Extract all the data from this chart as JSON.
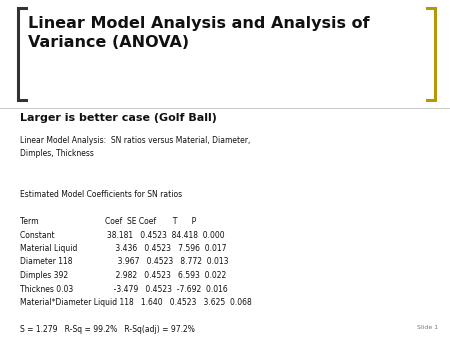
{
  "bg_color": "#e8e8d8",
  "title_bg_color": "#ffffff",
  "body_bg_color": "#ffffff",
  "title_text": "Linear Model Analysis and Analysis of\nVariance (ANOVA)",
  "subtitle_text": "Larger is better case (Golf Ball)",
  "title_color": "#111111",
  "subtitle_color": "#111111",
  "bracket_color": "#333333",
  "gold_color": "#b8960a",
  "body_lines": [
    "Linear Model Analysis:  SN ratios versus Material, Diameter,",
    "Dimples, Thickness",
    "",
    "",
    "Estimated Model Coefficients for SN ratios",
    "",
    "Term                            Coef  SE Coef       T      P",
    "Constant                      38.181   0.4523  84.418  0.000",
    "Material Liquid                3.436   0.4523   7.596  0.017",
    "Diameter 118                   3.967   0.4523   8.772  0.013",
    "Dimples 392                    2.982   0.4523   6.593  0.022",
    "Thicknes 0.03                 -3.479   0.4523  -7.692  0.016",
    "Material*Diameter Liquid 118   1.640   0.4523   3.625  0.068",
    "",
    "S = 1.279   R-Sq = 99.2%   R-Sq(adj) = 97.2%"
  ],
  "slide_label": "Slide 1",
  "title_fontsize": 11.5,
  "subtitle_fontsize": 8.0,
  "body_fontsize": 5.5
}
